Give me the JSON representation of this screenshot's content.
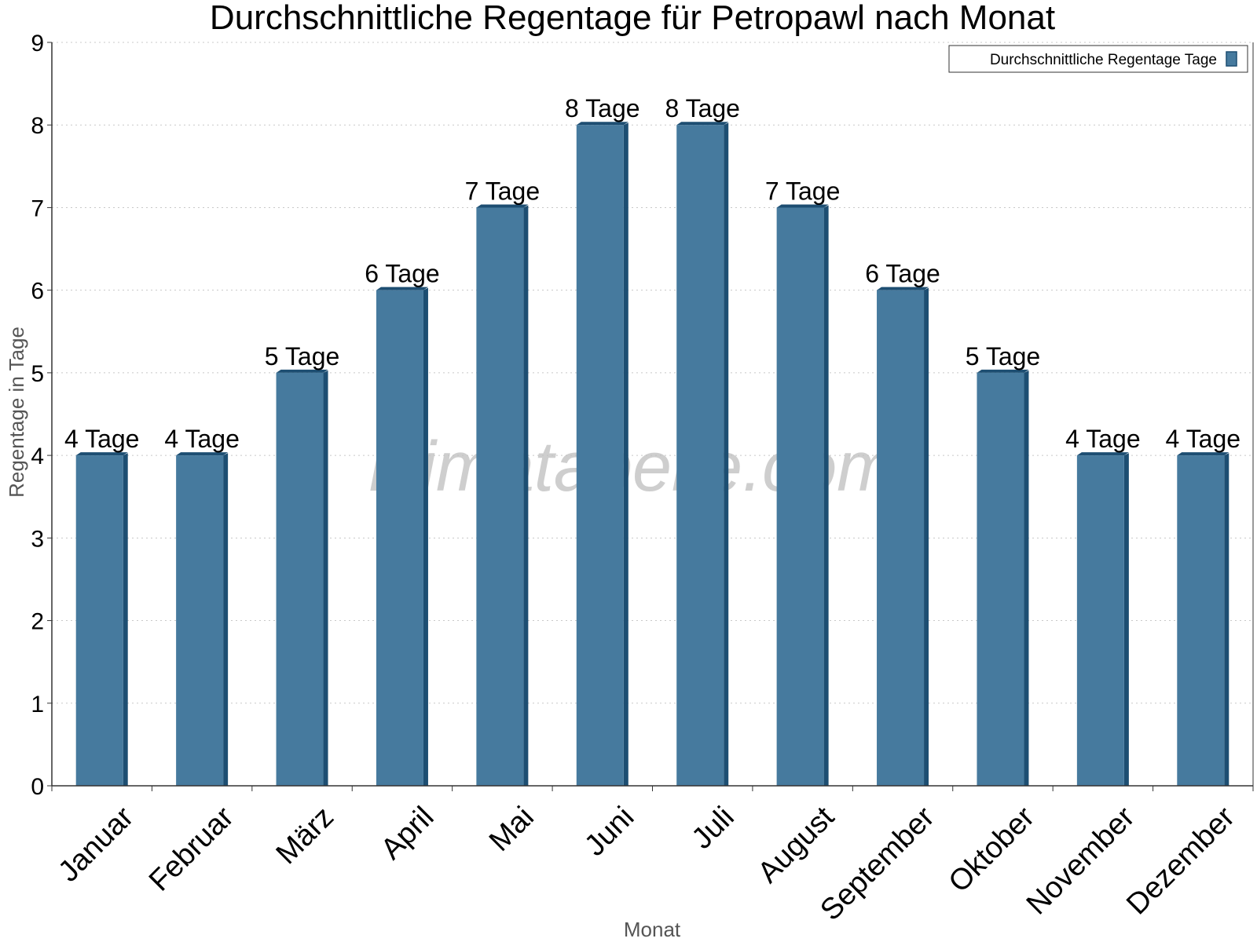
{
  "chart_data": {
    "type": "bar",
    "title": "Durchschnittliche Regentage für Petropawl nach Monat",
    "xlabel": "Monat",
    "ylabel": "Regentage in Tage",
    "ylim": [
      0,
      9
    ],
    "y_ticks": [
      "0",
      "1",
      "2",
      "3",
      "4",
      "5",
      "6",
      "7",
      "8",
      "9"
    ],
    "grid": true,
    "legend_position": "top-right",
    "categories": [
      "Januar",
      "Februar",
      "März",
      "April",
      "Mai",
      "Juni",
      "Juli",
      "August",
      "September",
      "Oktober",
      "November",
      "Dezember"
    ],
    "series": [
      {
        "name": "Durchschnittliche Regentage Tage",
        "values": [
          4,
          4,
          5,
          6,
          7,
          8,
          8,
          7,
          6,
          5,
          4,
          4
        ],
        "data_labels": [
          "4 Tage",
          "4 Tage",
          "5 Tage",
          "6 Tage",
          "7 Tage",
          "8 Tage",
          "8 Tage",
          "7 Tage",
          "6 Tage",
          "5 Tage",
          "4 Tage",
          "4 Tage"
        ],
        "color": "#467a9e",
        "side_color": "#1d4e72"
      }
    ],
    "watermark": "klimatabelle.com"
  }
}
